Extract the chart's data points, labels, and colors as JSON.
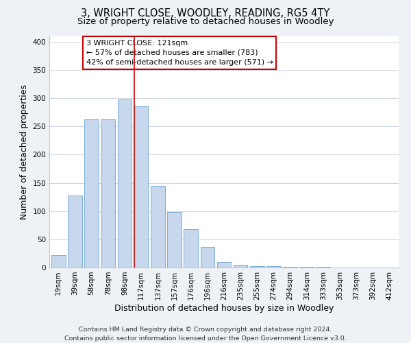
{
  "title": "3, WRIGHT CLOSE, WOODLEY, READING, RG5 4TY",
  "subtitle": "Size of property relative to detached houses in Woodley",
  "xlabel": "Distribution of detached houses by size in Woodley",
  "ylabel": "Number of detached properties",
  "bar_labels": [
    "19sqm",
    "39sqm",
    "58sqm",
    "78sqm",
    "98sqm",
    "117sqm",
    "137sqm",
    "157sqm",
    "176sqm",
    "196sqm",
    "216sqm",
    "235sqm",
    "255sqm",
    "274sqm",
    "294sqm",
    "314sqm",
    "333sqm",
    "353sqm",
    "373sqm",
    "392sqm",
    "412sqm"
  ],
  "bar_heights": [
    22,
    128,
    263,
    263,
    298,
    285,
    144,
    98,
    68,
    37,
    10,
    5,
    3,
    3,
    1,
    1,
    1,
    0,
    0,
    0,
    0
  ],
  "bar_color": "#c8d8ec",
  "bar_edge_color": "#7aaed6",
  "highlight_line_color": "#cc0000",
  "ylim": [
    0,
    410
  ],
  "yticks": [
    0,
    50,
    100,
    150,
    200,
    250,
    300,
    350,
    400
  ],
  "annotation_title": "3 WRIGHT CLOSE: 121sqm",
  "annotation_line1": "← 57% of detached houses are smaller (783)",
  "annotation_line2": "42% of semi-detached houses are larger (571) →",
  "annotation_box_color": "#ffffff",
  "annotation_box_edge": "#cc0000",
  "footer_line1": "Contains HM Land Registry data © Crown copyright and database right 2024.",
  "footer_line2": "Contains public sector information licensed under the Open Government Licence v3.0.",
  "bg_color": "#eef2f7",
  "plot_bg_color": "#ffffff",
  "title_fontsize": 10.5,
  "subtitle_fontsize": 9.5,
  "axis_label_fontsize": 9,
  "tick_fontsize": 7.5,
  "footer_fontsize": 6.8,
  "highlight_bar_index": 5
}
